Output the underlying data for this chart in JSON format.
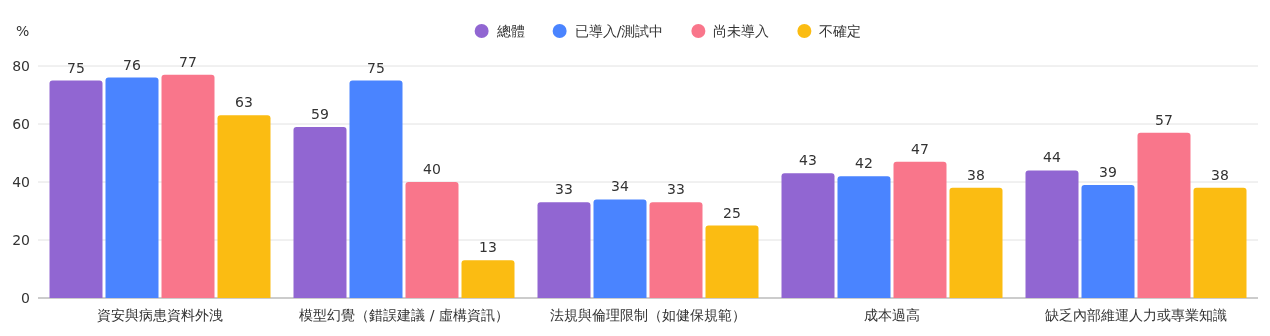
{
  "chart_data": {
    "type": "bar",
    "ylabel": "%",
    "categories": [
      "資安與病患資料外洩",
      "模型幻覺（錯誤建議 / 虛構資訊）",
      "法規與倫理限制（如健保規範）",
      "成本過高",
      "缺乏內部維運人力或專業知識"
    ],
    "series": [
      {
        "name": "總體",
        "color": "#9166d2",
        "values": [
          75,
          59,
          33,
          43,
          44
        ]
      },
      {
        "name": "已導入/測試中",
        "color": "#4a84ff",
        "values": [
          76,
          75,
          34,
          42,
          39
        ]
      },
      {
        "name": "尚未導入",
        "color": "#f9768b",
        "values": [
          77,
          40,
          33,
          47,
          57
        ]
      },
      {
        "name": "不確定",
        "color": "#fbbc12",
        "values": [
          63,
          13,
          25,
          38,
          38
        ]
      }
    ],
    "ylim": [
      0,
      80
    ],
    "yticks": [
      0,
      20,
      40,
      60,
      80
    ],
    "grid": "y",
    "legend": "top",
    "data_labels": true
  }
}
